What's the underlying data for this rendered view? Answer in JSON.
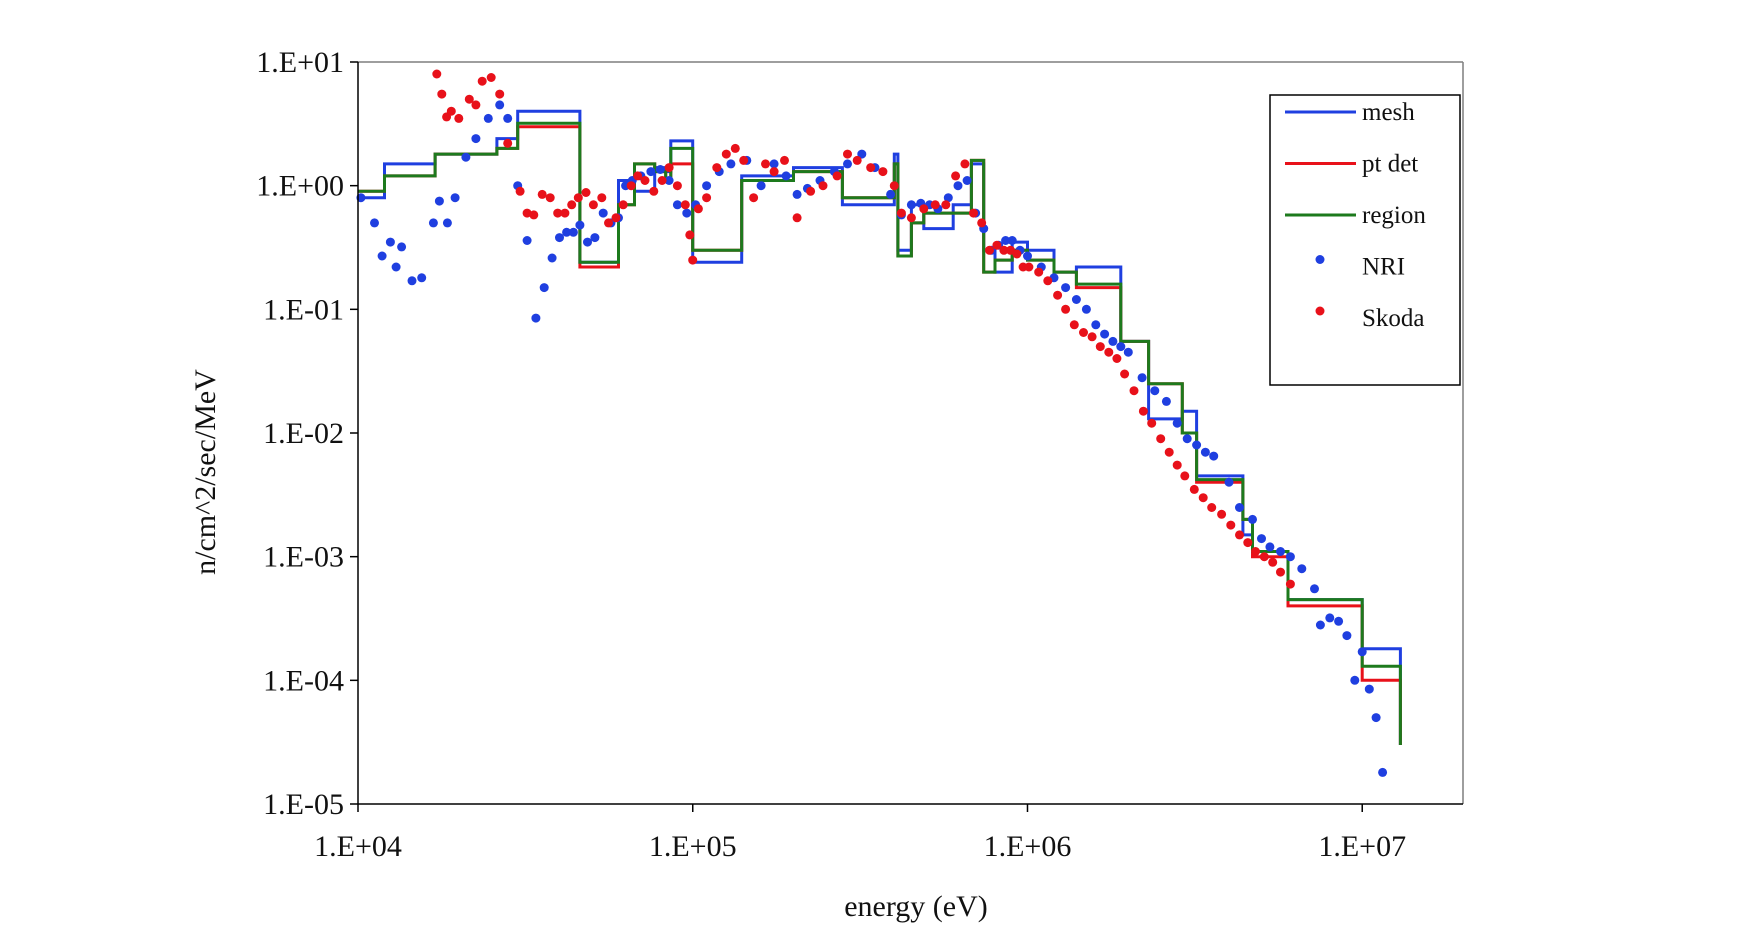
{
  "chart_data": {
    "type": "line",
    "title": "",
    "xlabel": "energy (eV)",
    "ylabel": "n/cm^2/sec/MeV",
    "x_scale": "log",
    "y_scale": "log",
    "xlim": [
      10000,
      20000000
    ],
    "ylim": [
      1e-05,
      10
    ],
    "x_ticks": [
      10000,
      100000,
      1000000,
      10000000
    ],
    "x_tick_labels": [
      "1.E+04",
      "1.E+05",
      "1.E+06",
      "1.E+07"
    ],
    "y_ticks": [
      10,
      1,
      0.1,
      0.01,
      0.001,
      0.0001,
      1e-05
    ],
    "y_tick_labels": [
      "1.E+01",
      "1.E+00",
      "1.E-01",
      "1.E-02",
      "1.E-03",
      "1.E-04",
      "1.E-05"
    ],
    "grid": false,
    "legend_position": "top-right",
    "series": [
      {
        "name": "mesh",
        "style": "step",
        "color": "#1f3fe0",
        "edges": [
          10000,
          12000,
          17000,
          26000,
          30000,
          46000,
          60000,
          67000,
          77000,
          83000,
          86000,
          100000,
          140000,
          200000,
          280000,
          400000,
          410000,
          450000,
          490000,
          600000,
          680000,
          740000,
          800000,
          900000,
          1000000,
          1200000,
          1400000,
          1900000,
          2300000,
          2900000,
          3200000,
          4400000,
          4700000,
          6000000,
          8000000,
          10000000,
          13000000
        ],
        "values": [
          0.8,
          1.5,
          1.8,
          2.4,
          4.0,
          0.24,
          1.1,
          0.9,
          1.4,
          1.3,
          2.3,
          0.24,
          1.2,
          1.4,
          0.7,
          1.8,
          0.3,
          0.7,
          0.45,
          0.7,
          1.5,
          0.3,
          0.2,
          0.35,
          0.3,
          0.2,
          0.22,
          0.055,
          0.013,
          0.015,
          0.0045,
          0.0015,
          0.0011,
          0.00045,
          0.00045,
          0.00018,
          3e-05
        ]
      },
      {
        "name": "pt det",
        "style": "step",
        "color": "#e8111a",
        "edges": [
          10000,
          12000,
          17000,
          26000,
          30000,
          46000,
          60000,
          67000,
          77000,
          83000,
          86000,
          100000,
          140000,
          200000,
          280000,
          400000,
          410000,
          450000,
          490000,
          600000,
          680000,
          740000,
          800000,
          900000,
          1000000,
          1200000,
          1400000,
          1900000,
          2300000,
          2900000,
          3200000,
          4400000,
          4700000,
          6000000,
          8000000,
          10000000,
          13000000
        ],
        "values": [
          0.9,
          1.2,
          1.8,
          2.0,
          3.0,
          0.22,
          0.7,
          1.5,
          1.3,
          1.1,
          1.5,
          0.3,
          1.1,
          1.3,
          0.8,
          1.5,
          0.27,
          0.5,
          0.6,
          0.6,
          1.6,
          0.2,
          0.25,
          0.3,
          0.25,
          0.2,
          0.15,
          0.055,
          0.025,
          0.01,
          0.004,
          0.002,
          0.001,
          0.0004,
          0.0004,
          0.0001,
          3e-05
        ]
      },
      {
        "name": "region",
        "style": "step",
        "color": "#1d7a1d",
        "edges": [
          10000,
          12000,
          17000,
          26000,
          30000,
          46000,
          60000,
          67000,
          77000,
          83000,
          86000,
          100000,
          140000,
          200000,
          280000,
          400000,
          410000,
          450000,
          490000,
          600000,
          680000,
          740000,
          800000,
          900000,
          1000000,
          1200000,
          1400000,
          1900000,
          2300000,
          2900000,
          3200000,
          4400000,
          4700000,
          6000000,
          8000000,
          10000000,
          13000000
        ],
        "values": [
          0.9,
          1.2,
          1.8,
          2.0,
          3.2,
          0.24,
          0.7,
          1.5,
          1.3,
          1.1,
          2.0,
          0.3,
          1.1,
          1.3,
          0.8,
          1.5,
          0.27,
          0.5,
          0.6,
          0.6,
          1.6,
          0.2,
          0.25,
          0.3,
          0.25,
          0.2,
          0.16,
          0.055,
          0.025,
          0.01,
          0.0042,
          0.002,
          0.0011,
          0.00045,
          0.00045,
          0.00013,
          3e-05
        ]
      },
      {
        "name": "NRI",
        "style": "markers",
        "color": "#1f3fe0",
        "points": [
          [
            10200,
            0.8
          ],
          [
            11200,
            0.5
          ],
          [
            11800,
            0.27
          ],
          [
            12500,
            0.35
          ],
          [
            13000,
            0.22
          ],
          [
            13500,
            0.32
          ],
          [
            14500,
            0.17
          ],
          [
            15500,
            0.18
          ],
          [
            16800,
            0.5
          ],
          [
            17500,
            0.75
          ],
          [
            18500,
            0.5
          ],
          [
            19500,
            0.8
          ],
          [
            21000,
            1.7
          ],
          [
            22500,
            2.4
          ],
          [
            24500,
            3.5
          ],
          [
            26500,
            4.5
          ],
          [
            28000,
            3.5
          ],
          [
            30000,
            1.0
          ],
          [
            32000,
            0.36
          ],
          [
            34000,
            0.085
          ],
          [
            36000,
            0.15
          ],
          [
            38000,
            0.26
          ],
          [
            40000,
            0.38
          ],
          [
            42000,
            0.42
          ],
          [
            44000,
            0.42
          ],
          [
            46000,
            0.48
          ],
          [
            48500,
            0.35
          ],
          [
            51000,
            0.38
          ],
          [
            54000,
            0.6
          ],
          [
            57000,
            0.5
          ],
          [
            60000,
            0.55
          ],
          [
            63000,
            1.0
          ],
          [
            66000,
            1.1
          ],
          [
            70000,
            1.2
          ],
          [
            75000,
            1.3
          ],
          [
            80000,
            1.35
          ],
          [
            85000,
            1.1
          ],
          [
            90000,
            0.7
          ],
          [
            96000,
            0.6
          ],
          [
            102000,
            0.7
          ],
          [
            110000,
            1.0
          ],
          [
            120000,
            1.3
          ],
          [
            130000,
            1.5
          ],
          [
            145000,
            1.6
          ],
          [
            160000,
            1.0
          ],
          [
            175000,
            1.5
          ],
          [
            190000,
            1.2
          ],
          [
            205000,
            0.85
          ],
          [
            220000,
            0.95
          ],
          [
            240000,
            1.1
          ],
          [
            265000,
            1.3
          ],
          [
            290000,
            1.5
          ],
          [
            320000,
            1.8
          ],
          [
            350000,
            1.4
          ],
          [
            390000,
            0.85
          ],
          [
            420000,
            0.58
          ],
          [
            450000,
            0.7
          ],
          [
            480000,
            0.72
          ],
          [
            510000,
            0.7
          ],
          [
            540000,
            0.65
          ],
          [
            580000,
            0.8
          ],
          [
            620000,
            1.0
          ],
          [
            660000,
            1.1
          ],
          [
            700000,
            0.6
          ],
          [
            740000,
            0.45
          ],
          [
            780000,
            0.3
          ],
          [
            820000,
            0.33
          ],
          [
            860000,
            0.36
          ],
          [
            900000,
            0.36
          ],
          [
            950000,
            0.3
          ],
          [
            1000000,
            0.27
          ],
          [
            1100000,
            0.22
          ],
          [
            1200000,
            0.18
          ],
          [
            1300000,
            0.15
          ],
          [
            1400000,
            0.12
          ],
          [
            1500000,
            0.1
          ],
          [
            1600000,
            0.075
          ],
          [
            1700000,
            0.063
          ],
          [
            1800000,
            0.055
          ],
          [
            1900000,
            0.05
          ],
          [
            2000000,
            0.045
          ],
          [
            2200000,
            0.028
          ],
          [
            2400000,
            0.022
          ],
          [
            2600000,
            0.018
          ],
          [
            2800000,
            0.012
          ],
          [
            3000000,
            0.009
          ],
          [
            3200000,
            0.008
          ],
          [
            3400000,
            0.007
          ],
          [
            3600000,
            0.0065
          ],
          [
            4000000,
            0.004
          ],
          [
            4300000,
            0.0025
          ],
          [
            4700000,
            0.002
          ],
          [
            5000000,
            0.0014
          ],
          [
            5300000,
            0.0012
          ],
          [
            5700000,
            0.0011
          ],
          [
            6100000,
            0.001
          ],
          [
            6600000,
            0.0008
          ],
          [
            7200000,
            0.00055
          ],
          [
            7500000,
            0.00028
          ],
          [
            8000000,
            0.00032
          ],
          [
            8500000,
            0.0003
          ],
          [
            9000000,
            0.00023
          ],
          [
            9500000,
            0.0001
          ],
          [
            10000000,
            0.00017
          ],
          [
            10500000,
            8.5e-05
          ],
          [
            11000000,
            5e-05
          ],
          [
            11500000,
            1.8e-05
          ]
        ]
      },
      {
        "name": "Skoda",
        "style": "markers",
        "color": "#e8111a",
        "points": [
          [
            17200,
            8.0
          ],
          [
            17800,
            5.5
          ],
          [
            18400,
            3.6
          ],
          [
            19000,
            4.0
          ],
          [
            20000,
            3.5
          ],
          [
            21500,
            5.0
          ],
          [
            22500,
            4.5
          ],
          [
            23500,
            7.0
          ],
          [
            25000,
            7.5
          ],
          [
            26500,
            5.5
          ],
          [
            28000,
            2.2
          ],
          [
            30500,
            0.9
          ],
          [
            32000,
            0.6
          ],
          [
            33500,
            0.58
          ],
          [
            35500,
            0.85
          ],
          [
            37500,
            0.8
          ],
          [
            39500,
            0.6
          ],
          [
            41500,
            0.6
          ],
          [
            43500,
            0.7
          ],
          [
            45500,
            0.8
          ],
          [
            48000,
            0.88
          ],
          [
            50500,
            0.7
          ],
          [
            53500,
            0.8
          ],
          [
            56000,
            0.5
          ],
          [
            59000,
            0.55
          ],
          [
            62000,
            0.7
          ],
          [
            65500,
            1.0
          ],
          [
            68500,
            1.2
          ],
          [
            72000,
            1.1
          ],
          [
            76500,
            0.9
          ],
          [
            81000,
            1.1
          ],
          [
            85000,
            1.4
          ],
          [
            90000,
            1.0
          ],
          [
            95000,
            0.7
          ],
          [
            98000,
            0.4
          ],
          [
            100000,
            0.25
          ],
          [
            104000,
            0.65
          ],
          [
            110000,
            0.8
          ],
          [
            118000,
            1.4
          ],
          [
            126000,
            1.8
          ],
          [
            134000,
            2.0
          ],
          [
            142000,
            1.6
          ],
          [
            152000,
            0.8
          ],
          [
            165000,
            1.5
          ],
          [
            175000,
            1.3
          ],
          [
            188000,
            1.6
          ],
          [
            205000,
            0.55
          ],
          [
            225000,
            0.9
          ],
          [
            245000,
            1.0
          ],
          [
            270000,
            1.2
          ],
          [
            290000,
            1.8
          ],
          [
            310000,
            1.6
          ],
          [
            340000,
            1.4
          ],
          [
            370000,
            1.3
          ],
          [
            400000,
            1.0
          ],
          [
            420000,
            0.6
          ],
          [
            450000,
            0.55
          ],
          [
            490000,
            0.65
          ],
          [
            530000,
            0.7
          ],
          [
            570000,
            0.7
          ],
          [
            610000,
            1.2
          ],
          [
            650000,
            1.5
          ],
          [
            690000,
            0.6
          ],
          [
            730000,
            0.5
          ],
          [
            770000,
            0.3
          ],
          [
            810000,
            0.33
          ],
          [
            850000,
            0.3
          ],
          [
            890000,
            0.3
          ],
          [
            930000,
            0.28
          ],
          [
            970000,
            0.22
          ],
          [
            1010000,
            0.22
          ],
          [
            1080000,
            0.2
          ],
          [
            1150000,
            0.17
          ],
          [
            1230000,
            0.13
          ],
          [
            1300000,
            0.1
          ],
          [
            1380000,
            0.075
          ],
          [
            1470000,
            0.065
          ],
          [
            1560000,
            0.06
          ],
          [
            1650000,
            0.05
          ],
          [
            1750000,
            0.045
          ],
          [
            1850000,
            0.04
          ],
          [
            1950000,
            0.03
          ],
          [
            2080000,
            0.022
          ],
          [
            2220000,
            0.015
          ],
          [
            2350000,
            0.012
          ],
          [
            2500000,
            0.009
          ],
          [
            2650000,
            0.007
          ],
          [
            2800000,
            0.0055
          ],
          [
            2950000,
            0.0045
          ],
          [
            3150000,
            0.0035
          ],
          [
            3350000,
            0.003
          ],
          [
            3550000,
            0.0025
          ],
          [
            3800000,
            0.0022
          ],
          [
            4050000,
            0.0018
          ],
          [
            4300000,
            0.0015
          ],
          [
            4550000,
            0.0013
          ],
          [
            4800000,
            0.0011
          ],
          [
            5100000,
            0.001
          ],
          [
            5400000,
            0.0009
          ],
          [
            5700000,
            0.00075
          ],
          [
            6100000,
            0.0006
          ]
        ]
      }
    ]
  }
}
